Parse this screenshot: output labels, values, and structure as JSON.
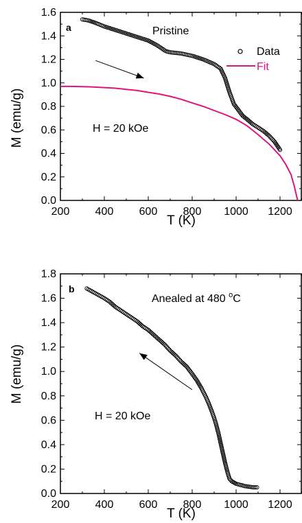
{
  "chart_data": [
    {
      "type": "scatter",
      "panel_label": "a",
      "annotation": "Pristine",
      "field_label": "H = 20 kOe",
      "xlabel": "T  (K)",
      "ylabel": "M  (emu/g)",
      "xlim": [
        200,
        1300
      ],
      "ylim": [
        0,
        1.6
      ],
      "xticks": [
        200,
        400,
        600,
        800,
        1000,
        1200
      ],
      "yticks": [
        0.0,
        0.2,
        0.4,
        0.6,
        0.8,
        1.0,
        1.2,
        1.4,
        1.6
      ],
      "ytick_labels": [
        "0.0",
        "0.2",
        "0.4",
        "0.6",
        "0.8",
        "1.0",
        "1.2",
        "1.4",
        "1.6"
      ],
      "legend": {
        "placement": "top-right",
        "entries": [
          {
            "label": "Data",
            "marker": "open-circle",
            "color": "#000000"
          },
          {
            "label": "Fit",
            "marker": "line",
            "color": "#e0137c"
          }
        ]
      },
      "arrow": {
        "from": [
          360,
          1.19
        ],
        "to": [
          580,
          1.04
        ],
        "meaning": "cooling-direction"
      },
      "series": [
        {
          "name": "Data",
          "style": "open-circle",
          "color": "#000000",
          "x": [
            300,
            330,
            360,
            400,
            450,
            500,
            550,
            600,
            640,
            680,
            700,
            750,
            800,
            850,
            900,
            930,
            950,
            970,
            990,
            1010,
            1030,
            1050,
            1075,
            1100,
            1125,
            1150,
            1175,
            1200
          ],
          "y": [
            1.54,
            1.53,
            1.51,
            1.48,
            1.45,
            1.42,
            1.39,
            1.36,
            1.32,
            1.27,
            1.26,
            1.25,
            1.23,
            1.2,
            1.16,
            1.12,
            1.04,
            0.92,
            0.82,
            0.77,
            0.72,
            0.69,
            0.65,
            0.62,
            0.59,
            0.55,
            0.5,
            0.43
          ]
        },
        {
          "name": "Fit",
          "style": "line",
          "color": "#e0137c",
          "x": [
            200,
            250,
            300,
            350,
            400,
            450,
            500,
            550,
            600,
            650,
            700,
            750,
            800,
            850,
            900,
            950,
            1000,
            1050,
            1100,
            1150,
            1200,
            1225,
            1250,
            1265,
            1280
          ],
          "y": [
            0.97,
            0.97,
            0.968,
            0.965,
            0.96,
            0.955,
            0.945,
            0.935,
            0.92,
            0.905,
            0.885,
            0.86,
            0.83,
            0.8,
            0.765,
            0.73,
            0.69,
            0.635,
            0.56,
            0.48,
            0.38,
            0.31,
            0.22,
            0.12,
            0.0
          ]
        }
      ]
    },
    {
      "type": "scatter",
      "panel_label": "b",
      "annotation": "Anealed at 480 ",
      "annotation_sup": "o",
      "annotation_tail": "C",
      "field_label": "H = 20 kOe",
      "xlabel": "T  (K)",
      "ylabel": "M  (emu/g)",
      "xlim": [
        200,
        1300
      ],
      "ylim": [
        0,
        1.8
      ],
      "xticks": [
        200,
        400,
        600,
        800,
        1000,
        1200
      ],
      "yticks": [
        0.0,
        0.2,
        0.4,
        0.6,
        0.8,
        1.0,
        1.2,
        1.4,
        1.6,
        1.8
      ],
      "ytick_labels": [
        "0.0",
        "0.2",
        "0.4",
        "0.6",
        "0.8",
        "1.0",
        "1.2",
        "1.4",
        "1.6",
        "1.8"
      ],
      "arrow": {
        "from": [
          800,
          0.85
        ],
        "to": [
          560,
          1.15
        ],
        "meaning": "heating-direction"
      },
      "series": [
        {
          "name": "",
          "style": "open-circle",
          "color": "#000000",
          "x": [
            320,
            340,
            360,
            380,
            400,
            425,
            450,
            475,
            500,
            525,
            550,
            575,
            600,
            625,
            650,
            675,
            700,
            725,
            750,
            775,
            800,
            820,
            840,
            860,
            875,
            890,
            900,
            910,
            920,
            930,
            940,
            950,
            960,
            970,
            980,
            990,
            1000,
            1020,
            1040,
            1060,
            1080,
            1095
          ],
          "y": [
            1.68,
            1.66,
            1.64,
            1.62,
            1.6,
            1.57,
            1.53,
            1.5,
            1.47,
            1.44,
            1.41,
            1.37,
            1.34,
            1.3,
            1.26,
            1.22,
            1.17,
            1.13,
            1.08,
            1.04,
            0.98,
            0.93,
            0.87,
            0.8,
            0.74,
            0.67,
            0.62,
            0.56,
            0.49,
            0.41,
            0.33,
            0.25,
            0.18,
            0.12,
            0.1,
            0.09,
            0.08,
            0.07,
            0.06,
            0.055,
            0.05,
            0.05
          ]
        }
      ]
    }
  ]
}
